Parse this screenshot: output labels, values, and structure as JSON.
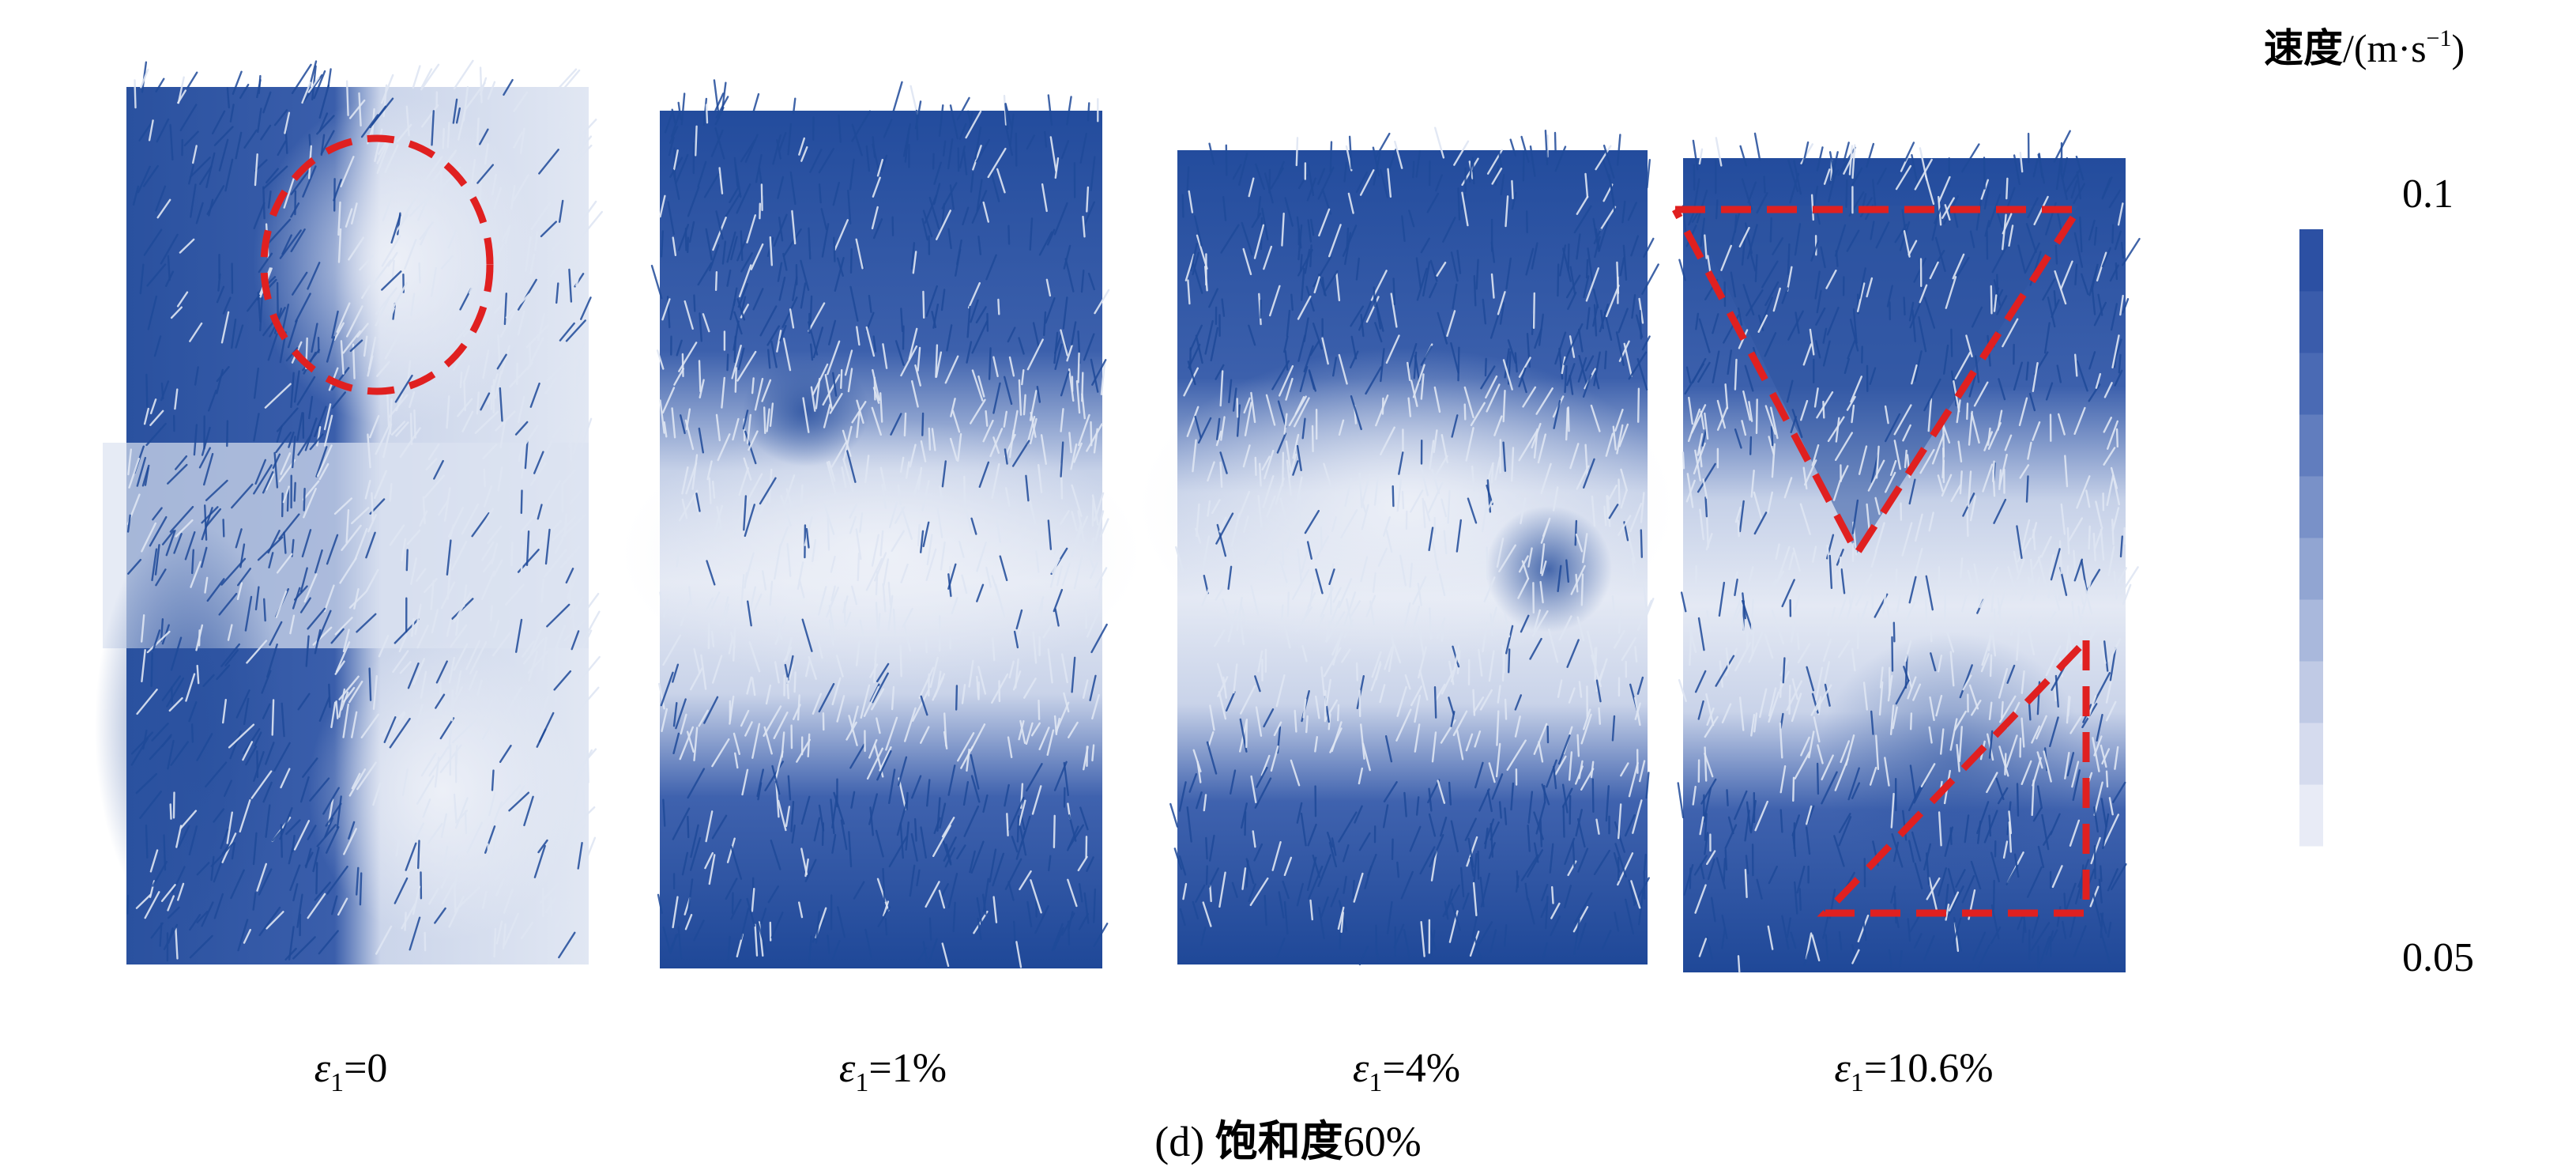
{
  "caption": {
    "prefix": "(d) ",
    "cjk_text": "饱和度",
    "value": "60%"
  },
  "colorbar": {
    "title_cjk": "速度",
    "title_unit_main": "/(m·s",
    "title_unit_sup": "−1",
    "title_unit_close": ")",
    "max_label": "0.1",
    "min_label": "0.05",
    "min_value": 0.05,
    "max_value": 0.1,
    "bands": 10,
    "colors": [
      "#e8ebf6",
      "#d5dbee",
      "#c0cae5",
      "#a9b8dc",
      "#91a5d2",
      "#7991c8",
      "#617dbe",
      "#4a6ab4",
      "#3a5cab",
      "#2c50a3"
    ]
  },
  "panels": [
    {
      "strain_symbol": "ε",
      "strain_sub": "1",
      "strain_value": "=0",
      "highlight": "circle"
    },
    {
      "strain_symbol": "ε",
      "strain_sub": "1",
      "strain_value": "=1%",
      "highlight": "none"
    },
    {
      "strain_symbol": "ε",
      "strain_sub": "1",
      "strain_value": "=4%",
      "highlight": "none"
    },
    {
      "strain_symbol": "ε",
      "strain_sub": "1",
      "strain_value": "=10.6%",
      "highlight": "triangles"
    }
  ],
  "colors": {
    "vector_dark": "#1f4a99",
    "vector_light": "#dfe6f3",
    "highlight": "#e02020"
  }
}
